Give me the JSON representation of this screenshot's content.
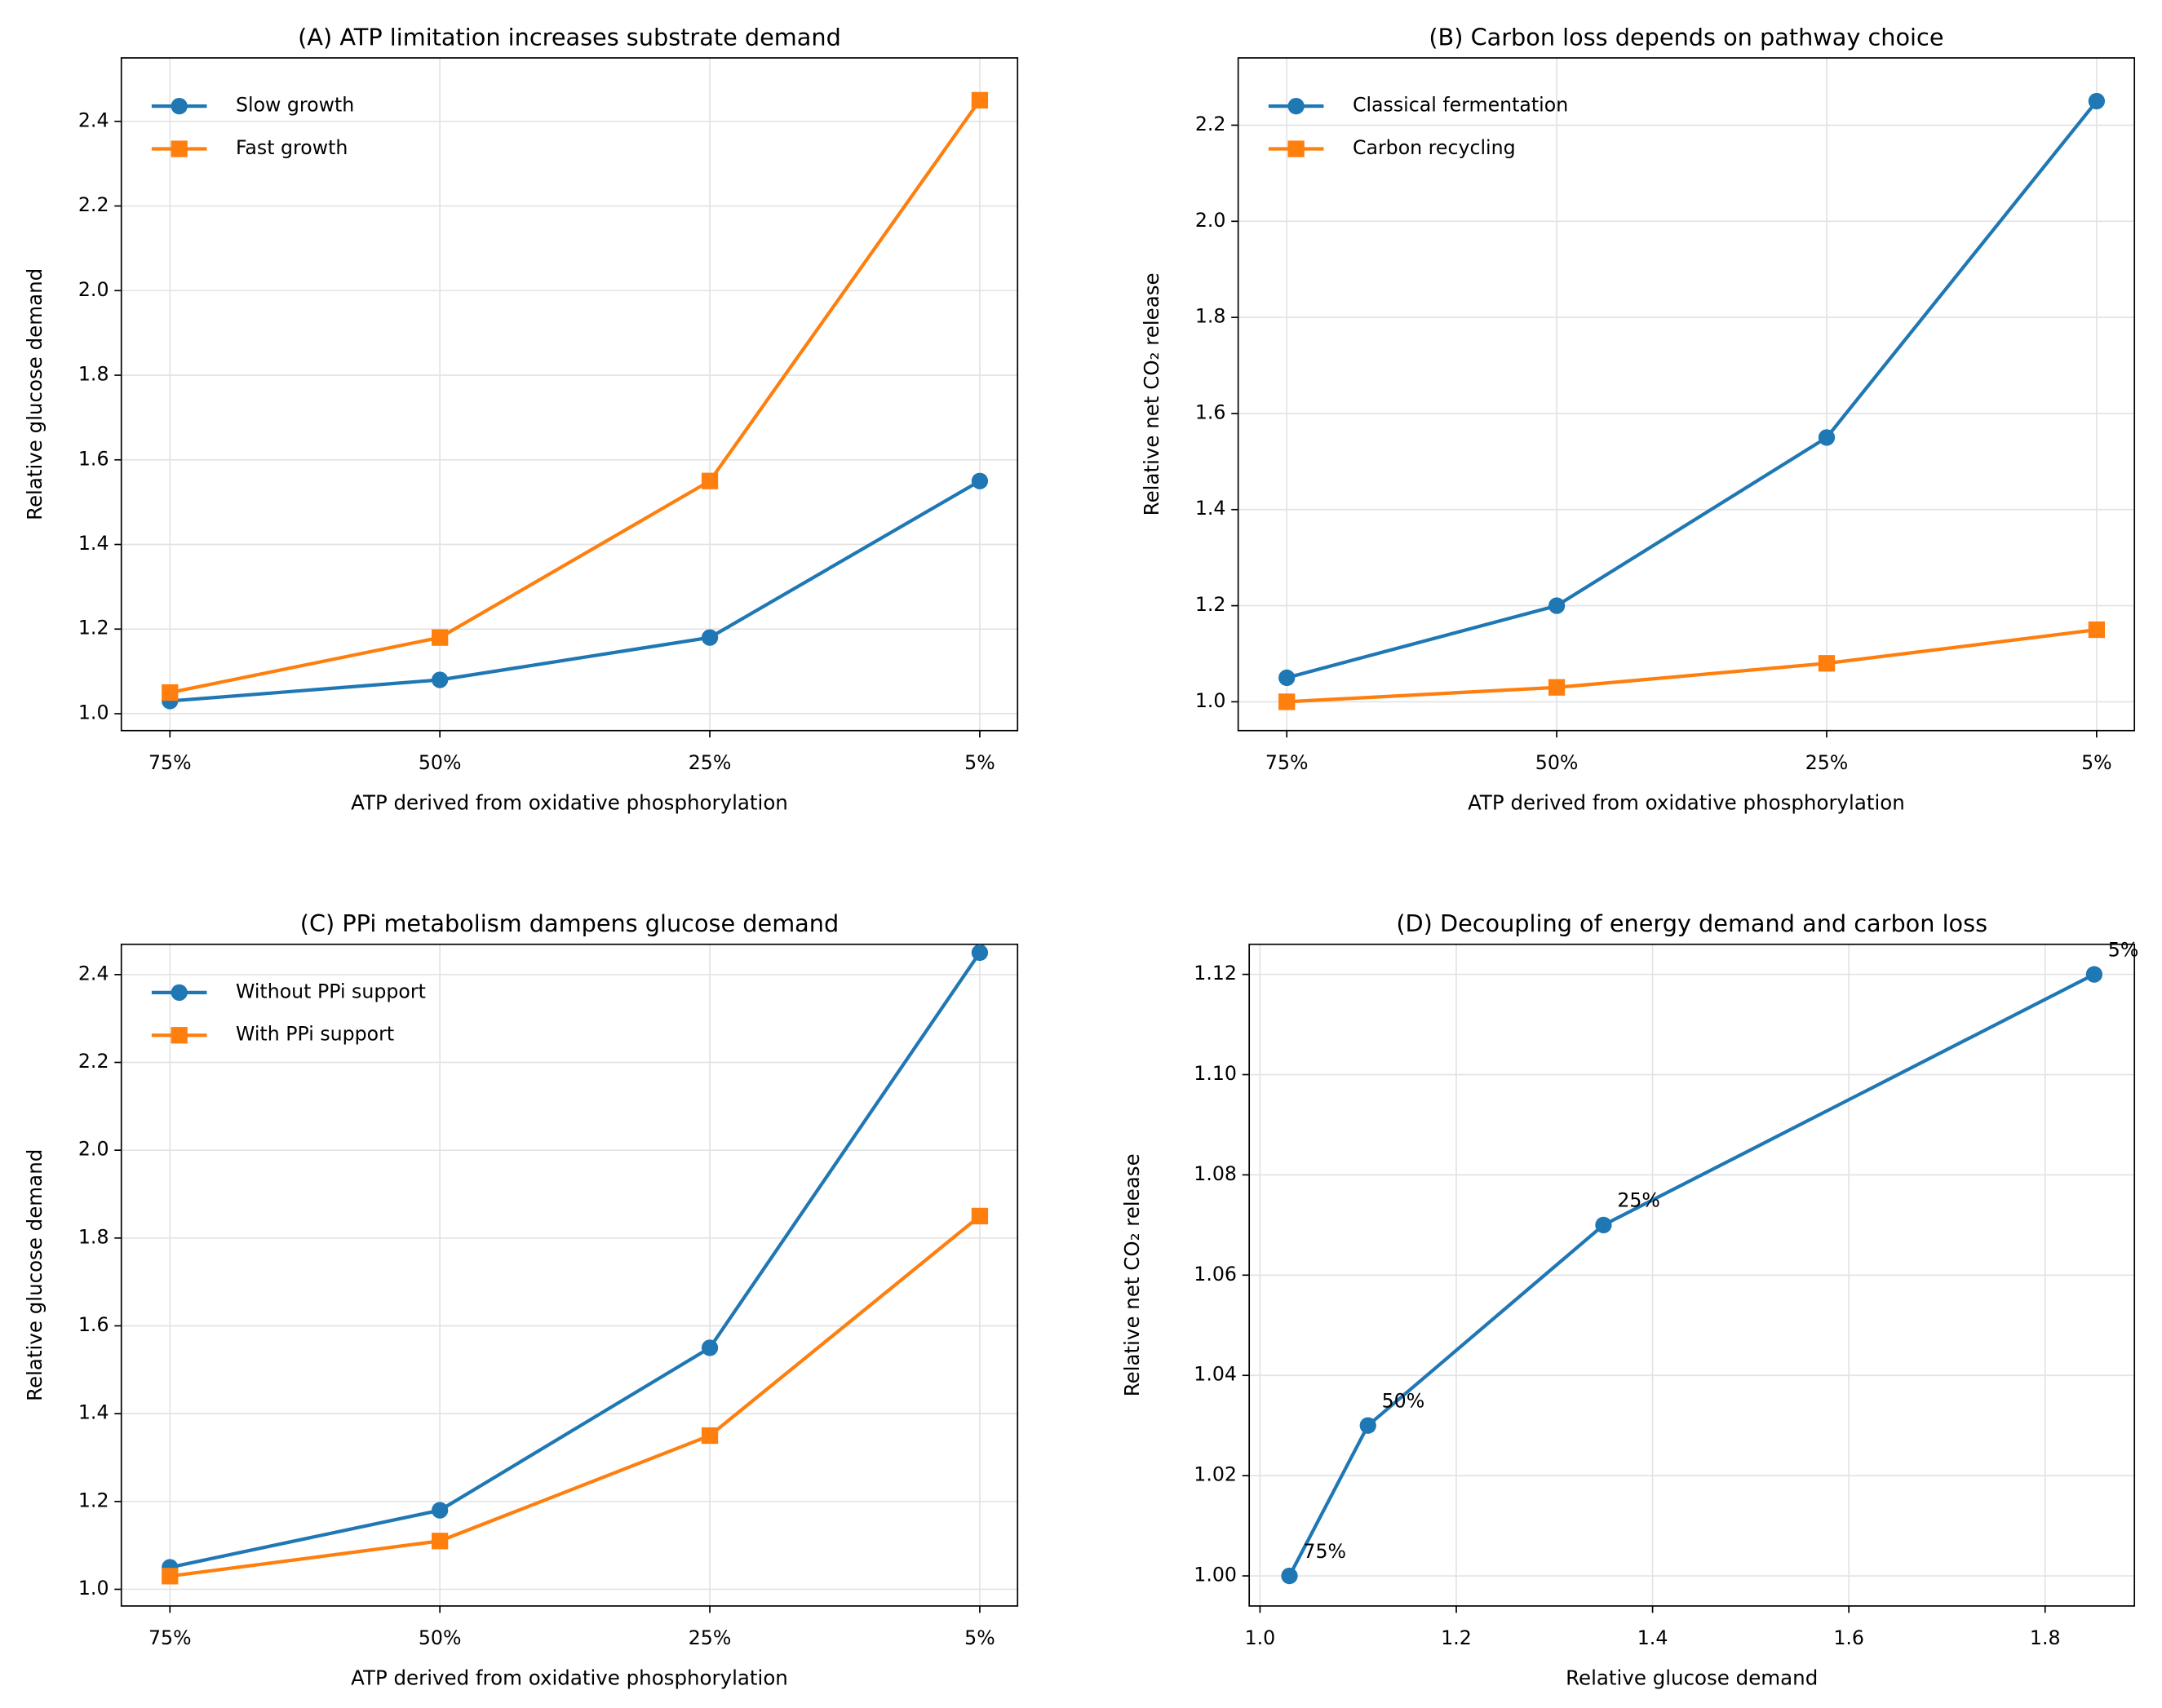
{
  "chart_data": [
    {
      "type": "line",
      "title": "(A) ATP limitation increases substrate demand",
      "x_label": "ATP derived from oxidative phosphorylation",
      "y_label": "Relative glucose demand",
      "categories": [
        "75%",
        "50%",
        "25%",
        "5%"
      ],
      "series": [
        {
          "name": "Slow growth",
          "color": "#1f77b4",
          "marker": "o",
          "values": [
            1.03,
            1.08,
            1.18,
            1.55
          ]
        },
        {
          "name": "Fast growth",
          "color": "#ff7f0e",
          "marker": "s",
          "values": [
            1.05,
            1.18,
            1.55,
            2.45
          ]
        }
      ],
      "ylim": [
        0.96,
        2.55
      ],
      "yticks": [
        {
          "value": 1.0,
          "label": "1.0"
        },
        1.2,
        1.4,
        1.6,
        1.8,
        {
          "value": 2.0,
          "label": "2.0"
        },
        2.2,
        2.4
      ],
      "grid": true,
      "legend": "upper-left"
    },
    {
      "type": "line",
      "title": "(B) Carbon loss depends on pathway choice",
      "x_label": "ATP derived from oxidative phosphorylation",
      "y_label": "Relative net CO₂ release",
      "categories": [
        "75%",
        "50%",
        "25%",
        "5%"
      ],
      "series": [
        {
          "name": "Classical fermentation",
          "color": "#1f77b4",
          "marker": "o",
          "values": [
            1.05,
            1.2,
            1.55,
            2.25
          ]
        },
        {
          "name": "Carbon recycling",
          "color": "#ff7f0e",
          "marker": "s",
          "values": [
            1.0,
            1.03,
            1.08,
            1.15
          ]
        }
      ],
      "ylim": [
        0.94,
        2.34
      ],
      "yticks": [
        {
          "value": 1.0,
          "label": "1.0"
        },
        1.2,
        1.4,
        1.6,
        1.8,
        {
          "value": 2.0,
          "label": "2.0"
        },
        2.2
      ],
      "grid": true,
      "legend": "upper-left"
    },
    {
      "type": "line",
      "title": "(C) PPi metabolism dampens glucose demand",
      "x_label": "ATP derived from oxidative phosphorylation",
      "y_label": "Relative glucose demand",
      "categories": [
        "75%",
        "50%",
        "25%",
        "5%"
      ],
      "series": [
        {
          "name": "Without PPi support",
          "color": "#1f77b4",
          "marker": "o",
          "values": [
            1.05,
            1.18,
            1.55,
            2.45
          ]
        },
        {
          "name": "With PPi support",
          "color": "#ff7f0e",
          "marker": "s",
          "values": [
            1.03,
            1.11,
            1.35,
            1.85
          ]
        }
      ],
      "ylim": [
        0.962,
        2.469
      ],
      "yticks": [
        {
          "value": 1.0,
          "label": "1.0"
        },
        1.2,
        1.4,
        1.6,
        1.8,
        {
          "value": 2.0,
          "label": "2.0"
        },
        2.2,
        2.4
      ],
      "grid": true,
      "legend": "upper-left"
    },
    {
      "type": "xyline",
      "title": "(D) Decoupling of energy demand and carbon loss",
      "x_label": "Relative glucose demand",
      "y_label": "Relative net CO₂ release",
      "x": [
        1.03,
        1.11,
        1.35,
        1.85
      ],
      "series": [
        {
          "color": "#1f77b4",
          "marker": "o",
          "values": [
            1.0,
            1.03,
            1.07,
            1.12
          ]
        }
      ],
      "point_labels": [
        "75%",
        "50%",
        "25%",
        "5%"
      ],
      "xlim": [
        0.989,
        1.891
      ],
      "xticks": [
        {
          "value": 1.0,
          "label": "1.0"
        },
        1.2,
        1.4,
        1.6,
        1.8
      ],
      "ylim": [
        0.994,
        1.126
      ],
      "yticks": [
        {
          "value": 1.0,
          "label": "1.00"
        },
        1.02,
        1.04,
        1.06,
        1.08,
        {
          "value": 1.1,
          "label": "1.10"
        },
        1.12
      ],
      "grid": true
    }
  ]
}
